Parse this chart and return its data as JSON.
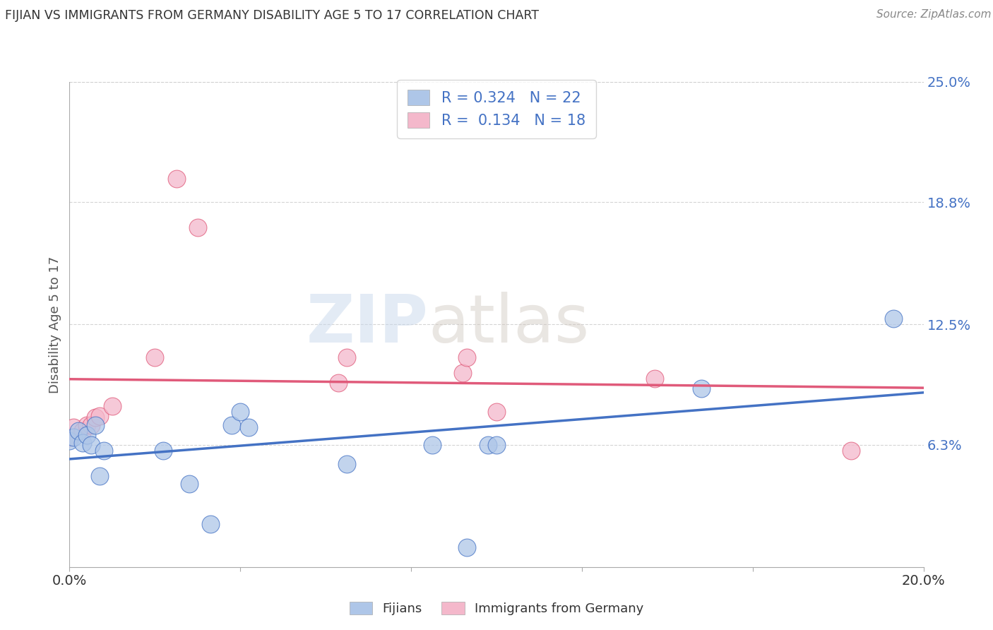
{
  "title": "FIJIAN VS IMMIGRANTS FROM GERMANY DISABILITY AGE 5 TO 17 CORRELATION CHART",
  "source": "Source: ZipAtlas.com",
  "ylabel": "Disability Age 5 to 17",
  "x_min": 0.0,
  "x_max": 0.2,
  "y_min": 0.0,
  "y_max": 0.25,
  "y_tick_labels_right": [
    "6.3%",
    "12.5%",
    "18.8%",
    "25.0%"
  ],
  "y_tick_vals_right": [
    0.063,
    0.125,
    0.188,
    0.25
  ],
  "fijians_color": "#aec6e8",
  "immigrants_color": "#f4b8cb",
  "line_fijians_color": "#4472c4",
  "line_immigrants_color": "#e05a7a",
  "R_fijians": 0.324,
  "N_fijians": 22,
  "R_immigrants": 0.134,
  "N_immigrants": 18,
  "fijians_x": [
    0.0,
    0.001,
    0.002,
    0.003,
    0.004,
    0.005,
    0.006,
    0.007,
    0.008,
    0.022,
    0.028,
    0.033,
    0.038,
    0.04,
    0.042,
    0.065,
    0.085,
    0.093,
    0.098,
    0.1,
    0.148,
    0.193
  ],
  "fijians_y": [
    0.065,
    0.067,
    0.07,
    0.064,
    0.068,
    0.063,
    0.073,
    0.047,
    0.06,
    0.06,
    0.043,
    0.022,
    0.073,
    0.08,
    0.072,
    0.053,
    0.063,
    0.01,
    0.063,
    0.063,
    0.092,
    0.128
  ],
  "immigrants_x": [
    0.0,
    0.001,
    0.003,
    0.004,
    0.005,
    0.006,
    0.007,
    0.01,
    0.02,
    0.025,
    0.03,
    0.063,
    0.065,
    0.092,
    0.093,
    0.1,
    0.137,
    0.183
  ],
  "immigrants_y": [
    0.067,
    0.072,
    0.07,
    0.073,
    0.073,
    0.077,
    0.078,
    0.083,
    0.108,
    0.2,
    0.175,
    0.095,
    0.108,
    0.1,
    0.108,
    0.08,
    0.097,
    0.06
  ],
  "watermark_zip": "ZIP",
  "watermark_atlas": "atlas",
  "background_color": "#ffffff",
  "grid_color": "#d0d0d0"
}
